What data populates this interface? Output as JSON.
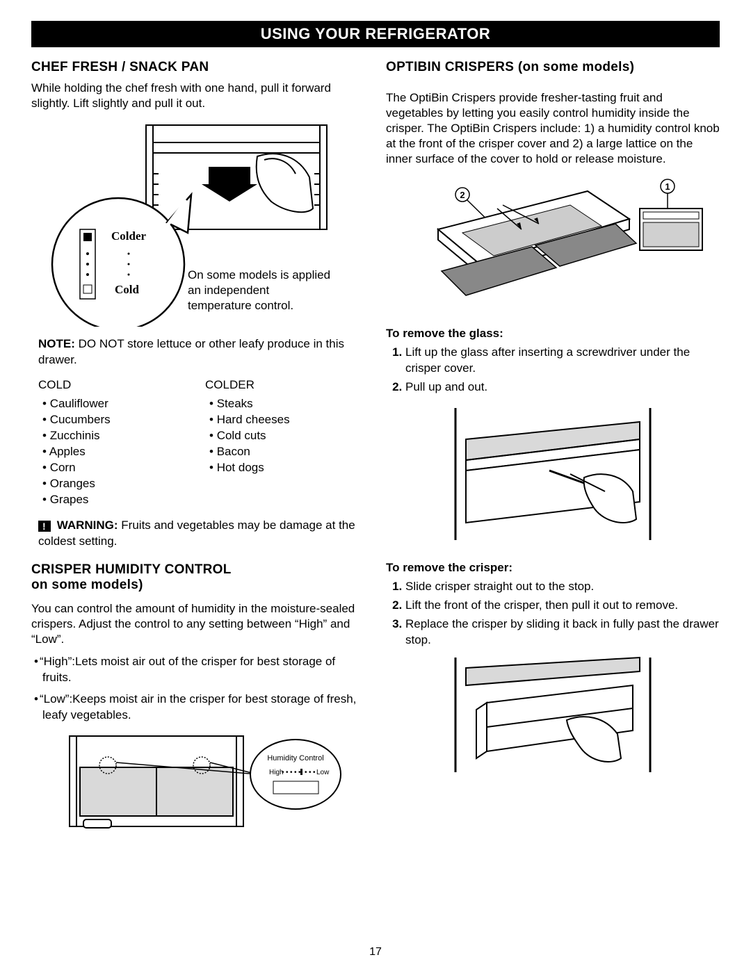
{
  "banner": "USING YOUR REFRIGERATOR",
  "page_number": "17",
  "left": {
    "chef_fresh": {
      "heading": "CHEF FRESH / SNACK PAN",
      "intro": "While holding the chef fresh with one hand, pull it forward slightly. Lift slightly and pull it out.",
      "fig_labels": {
        "colder": "Colder",
        "cold": "Cold",
        "caption": "On some models is applied an independent temperature control."
      },
      "note_label": "NOTE:",
      "note_body": "DO NOT store lettuce or other leafy produce in this drawer.",
      "cold_heading": "COLD",
      "colder_heading": "COLDER",
      "cold_items": [
        "Cauliflower",
        "Cucumbers",
        "Zucchinis",
        "Apples",
        "Corn",
        "Oranges",
        "Grapes"
      ],
      "colder_items": [
        "Steaks",
        "Hard cheeses",
        "Cold cuts",
        "Bacon",
        "Hot dogs"
      ],
      "warning_label": "WARNING:",
      "warning_body": "Fruits and vegetables may be damage at the coldest setting."
    },
    "humidity": {
      "heading_line1": "CRISPER HUMIDITY CONTROL",
      "heading_line2": "on some models)",
      "intro": "You can control the amount of humidity in the moisture-sealed crispers. Adjust the control to any setting between “High” and “Low”.",
      "defs": [
        "“High”:Lets moist air out of the crisper for best storage of fruits.",
        "“Low”:Keeps moist air in the crisper for best storage of fresh, leafy vegetables."
      ],
      "fig_labels": {
        "title": "Humidity Control",
        "high": "High",
        "low": "Low"
      }
    }
  },
  "right": {
    "optibin": {
      "heading": "OPTIBIN CRISPERS (on some models)",
      "intro": "The OptiBin Crispers provide fresher-tasting fruit and vegetables by letting you easily control humidity inside the crisper. The OptiBin Crispers include: 1) a humidity control knob at the front of the crisper cover and 2) a large lattice on the inner surface of the cover to hold or release moisture.",
      "callout1": "1",
      "callout2": "2",
      "remove_glass_heading": "To remove the glass:",
      "remove_glass_steps": [
        "Lift up the glass after inserting a screwdriver under the crisper cover.",
        "Pull up and out."
      ],
      "remove_crisper_heading": "To remove the crisper:",
      "remove_crisper_steps": [
        "Slide crisper straight out to the stop.",
        "Lift the front of the crisper, then pull it out to remove.",
        "Replace the crisper   by sliding it back in fully past the drawer stop."
      ]
    }
  }
}
